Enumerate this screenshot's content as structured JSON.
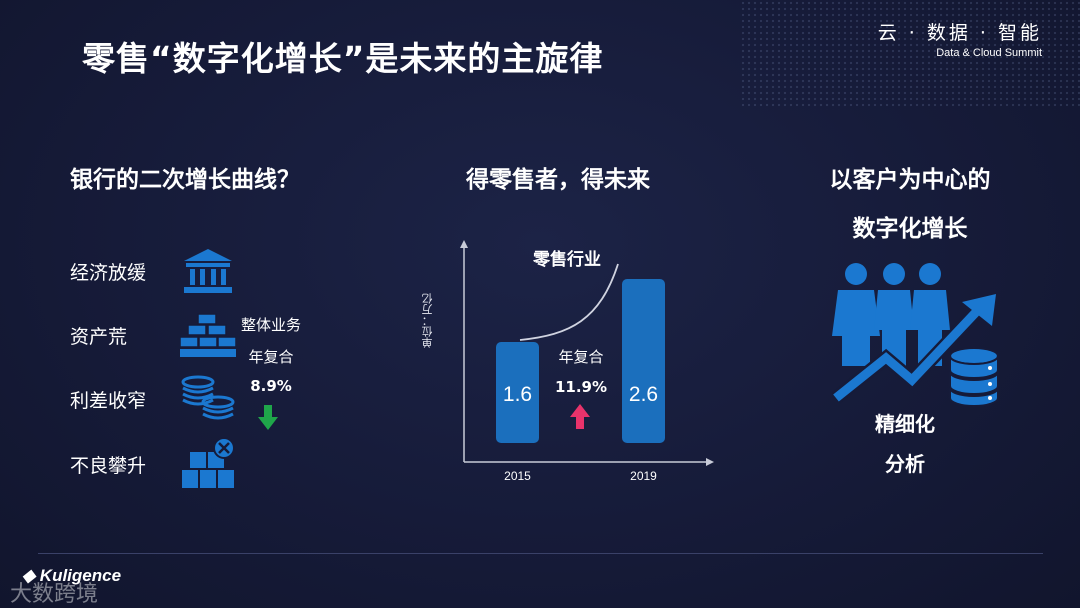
{
  "slide": {
    "title": "零售“数字化增长”是未来的主旋律"
  },
  "brand": {
    "cn": "云 · 数据 · 智能",
    "en": "Data & Cloud Summit"
  },
  "left": {
    "heading": "银行的二次增长曲线？",
    "items": [
      {
        "label": "经济放缓",
        "icon": "bank-icon"
      },
      {
        "label": "资产荒",
        "icon": "gold-bars-icon"
      },
      {
        "label": "利差收窄",
        "icon": "coins-icon"
      },
      {
        "label": "不良攀升",
        "icon": "boxes-x-icon"
      }
    ],
    "stat": {
      "line1": "整体业务",
      "line2": "年复合",
      "value": "8.9%",
      "arrow": "down-arrow-icon",
      "color": "#1fa64a"
    }
  },
  "middle": {
    "heading": "得零售者，得未来",
    "chart_data": {
      "type": "bar",
      "title": "零售行业",
      "ylabel": "单位：万亿",
      "categories": [
        "2015",
        "2019"
      ],
      "values": [
        1.6,
        2.6
      ],
      "annotation": {
        "line1": "年复合",
        "value": "11.9%",
        "arrow": "up-arrow-icon",
        "color": "#e8336b"
      }
    }
  },
  "right": {
    "heading_line1": "以客户为中心的",
    "heading_line2": "数字化增长",
    "caption_line1": "精细化",
    "caption_line2": "分析",
    "icon": "people-growth-database-icon"
  },
  "footer": {
    "logo": "Kuligence",
    "watermark": "大数跨境"
  }
}
